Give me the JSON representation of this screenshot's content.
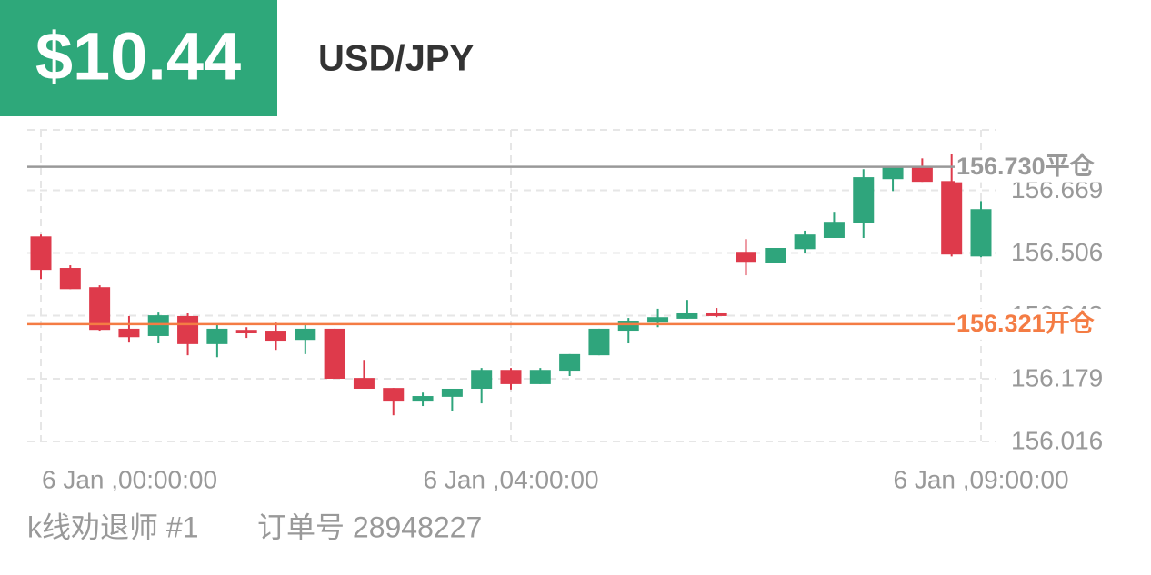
{
  "header": {
    "pnl": "$10.44",
    "symbol": "USD/JPY"
  },
  "footer": {
    "account": "k线劝退师 #1",
    "order": "订单号 28948227"
  },
  "chart_data": {
    "type": "candlestick",
    "categories": [
      "6 Jan ,00:00:00",
      null,
      null,
      null,
      null,
      null,
      null,
      null,
      null,
      null,
      null,
      null,
      null,
      null,
      null,
      null,
      "6 Jan ,04:00:00",
      null,
      null,
      null,
      null,
      null,
      null,
      null,
      null,
      null,
      null,
      null,
      null,
      null,
      null,
      null,
      "6 Jan ,09:00:00"
    ],
    "open": [
      156.549,
      156.467,
      156.417,
      156.309,
      156.29,
      156.342,
      156.269,
      156.306,
      156.304,
      156.28,
      156.309,
      156.181,
      156.155,
      156.122,
      156.132,
      156.153,
      156.202,
      156.165,
      156.2,
      156.24,
      156.304,
      156.325,
      156.335,
      156.349,
      156.509,
      156.481,
      156.516,
      156.545,
      156.585,
      156.698,
      156.731,
      156.693,
      156.497
    ],
    "high": [
      156.554,
      156.474,
      156.422,
      156.342,
      156.351,
      156.349,
      156.32,
      156.313,
      156.325,
      156.32,
      156.309,
      156.228,
      156.155,
      156.143,
      156.153,
      156.207,
      156.207,
      156.207,
      156.243,
      156.309,
      156.337,
      156.361,
      156.384,
      156.363,
      156.542,
      156.519,
      156.564,
      156.613,
      156.724,
      156.729,
      156.752,
      156.764,
      156.641
    ],
    "low": [
      156.438,
      156.412,
      156.304,
      156.273,
      156.271,
      156.24,
      156.235,
      156.285,
      156.254,
      156.243,
      156.179,
      156.153,
      156.084,
      156.108,
      156.094,
      156.115,
      156.151,
      156.165,
      156.186,
      156.24,
      156.271,
      156.313,
      156.335,
      156.339,
      156.448,
      156.481,
      156.505,
      156.545,
      156.545,
      156.667,
      156.691,
      156.497,
      156.495
    ],
    "close": [
      156.462,
      156.412,
      156.306,
      156.287,
      156.344,
      156.269,
      156.309,
      156.297,
      156.278,
      156.309,
      156.179,
      156.153,
      156.122,
      156.134,
      156.153,
      156.202,
      156.165,
      156.202,
      156.243,
      156.309,
      156.33,
      156.339,
      156.349,
      156.342,
      156.483,
      156.519,
      156.554,
      156.587,
      156.703,
      156.729,
      156.691,
      156.502,
      156.62
    ],
    "up_color": "#2fa57c",
    "down_color": "#de3a4b",
    "ylim": [
      156.016,
      156.826
    ],
    "yticks": [
      156.016,
      156.179,
      156.343,
      156.506,
      156.669
    ],
    "grid": true,
    "lines": [
      {
        "value": 156.73,
        "label": "156.730平仓",
        "color": "#999999"
      },
      {
        "value": 156.321,
        "label": "156.321开仓",
        "color": "#f47c44"
      }
    ]
  }
}
